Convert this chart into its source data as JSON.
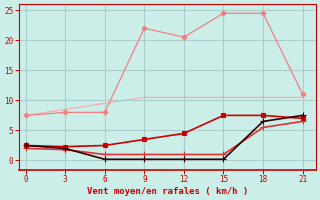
{
  "xlabel": "Vent moyen/en rafales ( km/h )",
  "background_color": "#cceee8",
  "grid_color": "#aacccc",
  "xlim": [
    -0.5,
    22
  ],
  "ylim": [
    -1.5,
    26
  ],
  "xticks": [
    0,
    3,
    6,
    9,
    12,
    15,
    18,
    21
  ],
  "yticks": [
    0,
    5,
    10,
    15,
    20,
    25
  ],
  "lines": [
    {
      "x": [
        0,
        3,
        6,
        9,
        12,
        15,
        18,
        21
      ],
      "y": [
        7.5,
        8.5,
        9.5,
        10.5,
        10.5,
        10.5,
        10.5,
        10.5
      ],
      "color": "#f0b0b0",
      "linewidth": 0.9,
      "marker": null,
      "zorder": 1
    },
    {
      "x": [
        0,
        3,
        6,
        9,
        12,
        15,
        18,
        21
      ],
      "y": [
        7.5,
        8.0,
        8.0,
        22.0,
        20.5,
        24.5,
        24.5,
        11.0
      ],
      "color": "#f08080",
      "linewidth": 0.9,
      "marker": "D",
      "markersize": 2.5,
      "zorder": 2
    },
    {
      "x": [
        0,
        3,
        6,
        9,
        12,
        15,
        18,
        21
      ],
      "y": [
        2.5,
        2.3,
        2.5,
        3.5,
        4.5,
        7.5,
        7.5,
        7.0
      ],
      "color": "#cc0000",
      "linewidth": 1.2,
      "marker": "s",
      "markersize": 2.5,
      "zorder": 4
    },
    {
      "x": [
        0,
        3,
        6,
        9,
        12,
        15,
        18,
        21
      ],
      "y": [
        2.5,
        2.0,
        0.2,
        0.2,
        0.2,
        0.2,
        6.5,
        7.5
      ],
      "color": "#330000",
      "linewidth": 1.2,
      "marker": "+",
      "markersize": 4,
      "zorder": 5
    },
    {
      "x": [
        0,
        3,
        6,
        9,
        12,
        15,
        18,
        21
      ],
      "y": [
        2.0,
        1.8,
        1.0,
        1.0,
        1.0,
        1.0,
        5.5,
        6.5
      ],
      "color": "#dd3333",
      "linewidth": 1.2,
      "marker": "+",
      "markersize": 4,
      "zorder": 3
    }
  ]
}
